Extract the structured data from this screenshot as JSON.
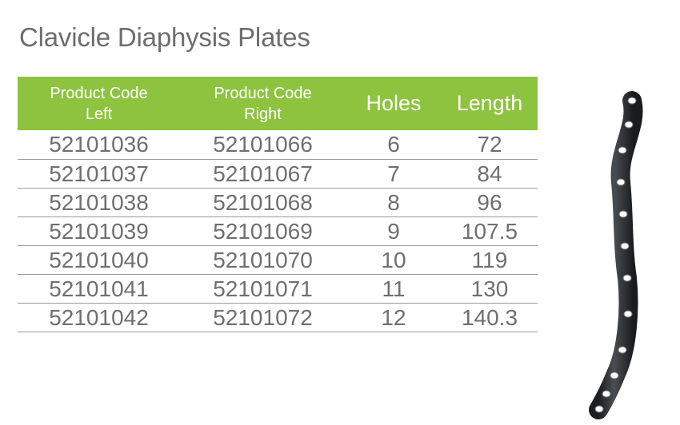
{
  "title": "Clavicle Diaphysis Plates",
  "table": {
    "headers": {
      "code_left": [
        "Product Code",
        "Left"
      ],
      "code_right": [
        "Product Code",
        "Right"
      ],
      "holes": "Holes",
      "length": "Length"
    },
    "rows": [
      {
        "left": "52101036",
        "right": "52101066",
        "holes": "6",
        "length": "72"
      },
      {
        "left": "52101037",
        "right": "52101067",
        "holes": "7",
        "length": "84"
      },
      {
        "left": "52101038",
        "right": "52101068",
        "holes": "8",
        "length": "96"
      },
      {
        "left": "52101039",
        "right": "52101069",
        "holes": "9",
        "length": "107.5"
      },
      {
        "left": "52101040",
        "right": "52101070",
        "holes": "10",
        "length": "119"
      },
      {
        "left": "52101041",
        "right": "52101071",
        "holes": "11",
        "length": "130"
      },
      {
        "left": "52101042",
        "right": "52101072",
        "holes": "12",
        "length": "140.3"
      }
    ]
  },
  "colors": {
    "header_bg": "#8dc33f",
    "header_text": "#ffffff",
    "body_text": "#6f6f6f",
    "plate_metal": "#2f3133"
  },
  "image": {
    "icon": "clavicle-plate-image"
  }
}
